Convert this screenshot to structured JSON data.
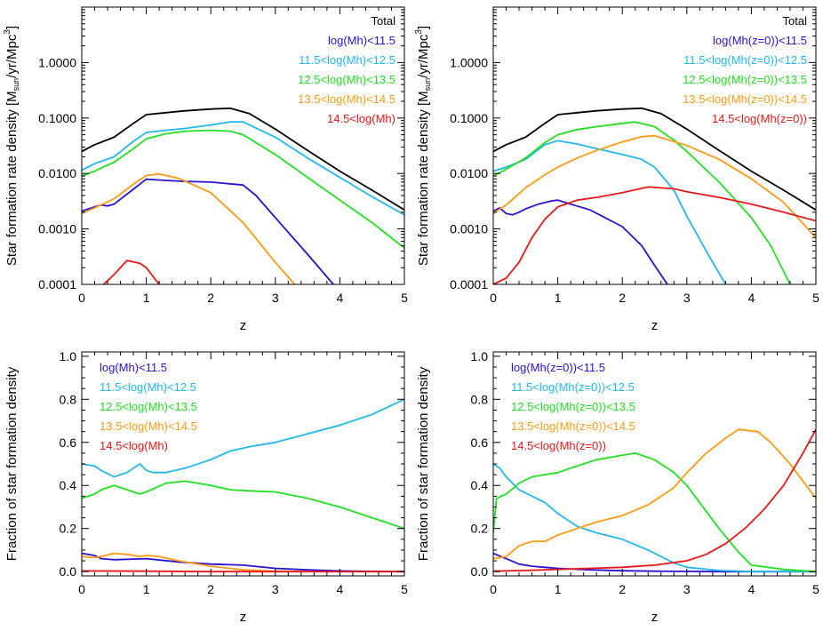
{
  "colors": {
    "total": "#000000",
    "bin1": "#2a12d0",
    "bin2": "#22b8ee",
    "bin3": "#22e022",
    "bin4": "#ff9a14",
    "bin5": "#e81818"
  },
  "chart_data": [
    {
      "id": "top-left",
      "type": "line",
      "yscale": "log",
      "xlabel": "z",
      "ylabel": "Star formation rate density [M",
      "ylabel_sub": "sun",
      "ylabel_tail": "/yr/Mpc",
      "ylabel_sup": "3",
      "ylabel_close": "]",
      "xlim": [
        0,
        5
      ],
      "ylim": [
        0.0001,
        10
      ],
      "xticks": [
        0,
        1,
        2,
        3,
        4,
        5
      ],
      "xtick_labels": [
        "0",
        "1",
        "2",
        "3",
        "4",
        "5"
      ],
      "yticks": [
        0.0001,
        0.001,
        0.01,
        0.1,
        1
      ],
      "ytick_labels": [
        "0.0001",
        "0.0010",
        "0.0100",
        "0.1000",
        "1.0000"
      ],
      "legend_align": "right",
      "series": [
        {
          "name": "Total",
          "color": "total",
          "x": [
            0,
            0.2,
            0.5,
            0.8,
            1.0,
            1.3,
            1.6,
            2.0,
            2.3,
            2.6,
            3.0,
            3.5,
            4.0,
            4.5,
            5.0
          ],
          "y": [
            0.025,
            0.033,
            0.045,
            0.08,
            0.115,
            0.125,
            0.135,
            0.145,
            0.15,
            0.12,
            0.063,
            0.026,
            0.011,
            0.005,
            0.0022
          ]
        },
        {
          "name": "log(Mh)<11.5",
          "color": "bin1",
          "x": [
            0,
            0.2,
            0.3,
            0.4,
            0.5,
            0.8,
            1.0,
            1.3,
            1.6,
            2.0,
            2.5,
            2.7,
            3.0,
            3.5,
            3.9
          ],
          "y": [
            0.0021,
            0.0025,
            0.0027,
            0.0026,
            0.0028,
            0.0052,
            0.0079,
            0.0075,
            0.0072,
            0.007,
            0.0062,
            0.004,
            0.0016,
            0.00035,
            0.0001
          ]
        },
        {
          "name": "11.5<log(Mh)<12.5",
          "color": "bin2",
          "x": [
            0,
            0.2,
            0.5,
            0.8,
            1.0,
            1.3,
            1.6,
            2.0,
            2.3,
            2.5,
            3.0,
            3.5,
            4.0,
            4.5,
            5.0
          ],
          "y": [
            0.0115,
            0.015,
            0.02,
            0.038,
            0.055,
            0.06,
            0.065,
            0.075,
            0.085,
            0.085,
            0.045,
            0.019,
            0.0085,
            0.0038,
            0.0018
          ]
        },
        {
          "name": "12.5<log(Mh)<13.5",
          "color": "bin3",
          "x": [
            0,
            0.2,
            0.5,
            0.8,
            1.0,
            1.3,
            1.6,
            2.0,
            2.3,
            2.5,
            3.0,
            3.5,
            4.0,
            4.5,
            5.0
          ],
          "y": [
            0.009,
            0.011,
            0.016,
            0.028,
            0.042,
            0.052,
            0.058,
            0.06,
            0.058,
            0.05,
            0.022,
            0.0085,
            0.0033,
            0.0013,
            0.00045
          ]
        },
        {
          "name": "13.5<log(Mh)<14.5",
          "color": "bin4",
          "x": [
            0,
            0.2,
            0.5,
            0.8,
            1.0,
            1.2,
            1.5,
            2.0,
            2.5,
            3.0,
            3.3
          ],
          "y": [
            0.0019,
            0.0024,
            0.0035,
            0.0064,
            0.0092,
            0.0098,
            0.0082,
            0.0045,
            0.0013,
            0.00025,
            0.0001
          ]
        },
        {
          "name": "14.5<log(Mh)",
          "color": "bin5",
          "x": [
            0,
            0.25,
            0.5,
            0.7,
            0.9,
            1.0,
            1.2
          ],
          "y": [
            9.5e-05,
            8e-05,
            0.00015,
            0.00027,
            0.00024,
            0.0002,
            0.0001
          ]
        }
      ]
    },
    {
      "id": "top-right",
      "type": "line",
      "yscale": "log",
      "xlabel": "z",
      "ylabel": "Star formation rate density [M",
      "ylabel_sub": "sun",
      "ylabel_tail": "/yr/Mpc",
      "ylabel_sup": "3",
      "ylabel_close": "]",
      "xlim": [
        0,
        5
      ],
      "ylim": [
        0.0001,
        10
      ],
      "xticks": [
        0,
        1,
        2,
        3,
        4,
        5
      ],
      "xtick_labels": [
        "0",
        "1",
        "2",
        "3",
        "4",
        "5"
      ],
      "yticks": [
        0.0001,
        0.001,
        0.01,
        0.1,
        1
      ],
      "ytick_labels": [
        "0.0001",
        "0.0010",
        "0.0100",
        "0.1000",
        "1.0000"
      ],
      "legend_align": "right",
      "series": [
        {
          "name": "Total",
          "color": "total",
          "x": [
            0,
            0.2,
            0.5,
            0.8,
            1.0,
            1.3,
            1.6,
            2.0,
            2.3,
            2.6,
            3.0,
            3.5,
            4.0,
            4.5,
            5.0
          ],
          "y": [
            0.025,
            0.033,
            0.045,
            0.08,
            0.115,
            0.125,
            0.135,
            0.145,
            0.15,
            0.12,
            0.063,
            0.026,
            0.011,
            0.005,
            0.0022
          ]
        },
        {
          "name": "log(Mh(z=0))<11.5",
          "color": "bin1",
          "x": [
            0,
            0.1,
            0.2,
            0.3,
            0.4,
            0.5,
            0.7,
            0.9,
            1.0,
            1.2,
            1.5,
            2.0,
            2.3,
            2.5,
            2.7
          ],
          "y": [
            0.0021,
            0.0024,
            0.0019,
            0.0018,
            0.002,
            0.0023,
            0.0028,
            0.0032,
            0.0033,
            0.0028,
            0.0022,
            0.0011,
            0.0005,
            0.00022,
            0.0001
          ]
        },
        {
          "name": "11.5<log(Mh(z=0))<12.5",
          "color": "bin2",
          "x": [
            0,
            0.2,
            0.5,
            0.8,
            1.0,
            1.3,
            1.6,
            2.0,
            2.3,
            2.5,
            2.8,
            3.0,
            3.3,
            3.6
          ],
          "y": [
            0.011,
            0.013,
            0.018,
            0.033,
            0.039,
            0.034,
            0.028,
            0.022,
            0.018,
            0.013,
            0.005,
            0.0017,
            0.0004,
            0.0001
          ]
        },
        {
          "name": "12.5<log(Mh(z=0))<13.5",
          "color": "bin3",
          "x": [
            0,
            0.2,
            0.5,
            0.8,
            1.0,
            1.3,
            1.6,
            2.0,
            2.2,
            2.5,
            2.8,
            3.0,
            3.5,
            4.0,
            4.3,
            4.6
          ],
          "y": [
            0.009,
            0.012,
            0.019,
            0.036,
            0.05,
            0.062,
            0.07,
            0.08,
            0.085,
            0.07,
            0.04,
            0.025,
            0.007,
            0.0016,
            0.0005,
            0.0001
          ]
        },
        {
          "name": "13.5<log(Mh(z=0))<14.5",
          "color": "bin4",
          "x": [
            0,
            0.2,
            0.5,
            0.8,
            1.0,
            1.3,
            1.6,
            2.0,
            2.3,
            2.5,
            3.0,
            3.5,
            4.0,
            4.5,
            5.0
          ],
          "y": [
            0.0019,
            0.0027,
            0.0055,
            0.0095,
            0.013,
            0.019,
            0.026,
            0.037,
            0.046,
            0.048,
            0.032,
            0.018,
            0.008,
            0.003,
            0.0007
          ]
        },
        {
          "name": "14.5<log(Mh(z=0))",
          "color": "bin5",
          "x": [
            0,
            0.2,
            0.4,
            0.6,
            0.8,
            1.0,
            1.3,
            1.6,
            2.0,
            2.4,
            2.8,
            3.0,
            3.5,
            4.0,
            4.5,
            5.0
          ],
          "y": [
            0.0001,
            0.00013,
            0.00025,
            0.0007,
            0.0015,
            0.0025,
            0.0033,
            0.0037,
            0.0045,
            0.0057,
            0.0053,
            0.0047,
            0.0037,
            0.0028,
            0.002,
            0.0014
          ]
        }
      ]
    },
    {
      "id": "bottom-left",
      "type": "line",
      "yscale": "linear",
      "xlabel": "z",
      "ylabel": "Fraction of star formation density",
      "xlim": [
        0,
        5
      ],
      "ylim": [
        -0.02,
        1.02
      ],
      "xticks": [
        0,
        1,
        2,
        3,
        4,
        5
      ],
      "xtick_labels": [
        "0",
        "1",
        "2",
        "3",
        "4",
        "5"
      ],
      "yticks": [
        0,
        0.2,
        0.4,
        0.6,
        0.8,
        1.0
      ],
      "ytick_labels": [
        "0.0",
        "0.2",
        "0.4",
        "0.6",
        "0.8",
        "1.0"
      ],
      "legend_align": "left",
      "series": [
        {
          "name": "log(Mh)<11.5",
          "color": "bin1",
          "x": [
            0,
            0.2,
            0.3,
            0.5,
            0.8,
            1.0,
            1.5,
            2.0,
            2.5,
            3.0,
            3.5,
            4.0,
            4.5,
            5.0
          ],
          "y": [
            0.085,
            0.075,
            0.06,
            0.055,
            0.058,
            0.06,
            0.045,
            0.035,
            0.03,
            0.015,
            0.008,
            0.003,
            0.001,
            0.0
          ]
        },
        {
          "name": "11.5<log(Mh)<12.5",
          "color": "bin2",
          "x": [
            0,
            0.2,
            0.3,
            0.5,
            0.7,
            0.9,
            1.0,
            1.1,
            1.3,
            1.6,
            2.0,
            2.3,
            2.6,
            3.0,
            3.5,
            4.0,
            4.5,
            5.0
          ],
          "y": [
            0.5,
            0.49,
            0.47,
            0.44,
            0.46,
            0.5,
            0.47,
            0.46,
            0.46,
            0.48,
            0.52,
            0.56,
            0.58,
            0.6,
            0.64,
            0.68,
            0.73,
            0.8
          ]
        },
        {
          "name": "12.5<log(Mh)<13.5",
          "color": "bin3",
          "x": [
            0,
            0.2,
            0.3,
            0.5,
            0.7,
            0.9,
            1.0,
            1.3,
            1.6,
            2.0,
            2.3,
            2.6,
            3.0,
            3.5,
            4.0,
            4.5,
            5.0
          ],
          "y": [
            0.34,
            0.36,
            0.38,
            0.4,
            0.38,
            0.36,
            0.37,
            0.41,
            0.42,
            0.4,
            0.38,
            0.375,
            0.37,
            0.34,
            0.3,
            0.25,
            0.2
          ]
        },
        {
          "name": "13.5<log(Mh)<14.5",
          "color": "bin4",
          "x": [
            0,
            0.2,
            0.3,
            0.5,
            0.7,
            0.9,
            1.0,
            1.2,
            1.5,
            2.0,
            2.5,
            3.0,
            3.5
          ],
          "y": [
            0.07,
            0.065,
            0.07,
            0.085,
            0.08,
            0.07,
            0.075,
            0.07,
            0.05,
            0.025,
            0.008,
            0.002,
            0.0
          ]
        },
        {
          "name": "14.5<log(Mh)",
          "color": "bin5",
          "x": [
            0,
            1.0,
            2.0,
            3.0,
            4.0,
            5.0
          ],
          "y": [
            0.003,
            0.002,
            0.0,
            0.0,
            0.0,
            0.0
          ]
        }
      ]
    },
    {
      "id": "bottom-right",
      "type": "line",
      "yscale": "linear",
      "xlabel": "z",
      "ylabel": "Fraction of star formation density",
      "xlim": [
        0,
        5
      ],
      "ylim": [
        -0.02,
        1.02
      ],
      "xticks": [
        0,
        1,
        2,
        3,
        4,
        5
      ],
      "xtick_labels": [
        "0",
        "1",
        "2",
        "3",
        "4",
        "5"
      ],
      "yticks": [
        0,
        0.2,
        0.4,
        0.6,
        0.8,
        1.0
      ],
      "ytick_labels": [
        "0.0",
        "0.2",
        "0.4",
        "0.6",
        "0.8",
        "1.0"
      ],
      "legend_align": "left",
      "series": [
        {
          "name": "log(Mh(z=0))<11.5",
          "color": "bin1",
          "x": [
            0,
            0.2,
            0.4,
            0.6,
            0.8,
            1.0,
            1.5,
            2.0,
            2.5,
            3.0,
            3.5,
            4.0,
            5.0
          ],
          "y": [
            0.085,
            0.06,
            0.035,
            0.025,
            0.02,
            0.015,
            0.008,
            0.004,
            0.002,
            0.001,
            0.0,
            0.0,
            0.0
          ]
        },
        {
          "name": "11.5<log(Mh(z=0))<12.5",
          "color": "bin2",
          "x": [
            0,
            0.1,
            0.2,
            0.4,
            0.6,
            0.8,
            1.0,
            1.3,
            1.6,
            2.0,
            2.4,
            2.8,
            3.0,
            3.5,
            4.0,
            5.0
          ],
          "y": [
            0.5,
            0.48,
            0.44,
            0.38,
            0.35,
            0.32,
            0.27,
            0.21,
            0.18,
            0.15,
            0.1,
            0.04,
            0.02,
            0.005,
            0.0,
            0.0
          ]
        },
        {
          "name": "12.5<log(Mh(z=0))<13.5",
          "color": "bin3",
          "x": [
            0,
            0.05,
            0.2,
            0.4,
            0.6,
            0.8,
            1.0,
            1.3,
            1.6,
            2.0,
            2.2,
            2.5,
            2.8,
            3.0,
            3.5,
            3.8,
            4.0,
            4.5,
            5.0
          ],
          "y": [
            0.18,
            0.34,
            0.36,
            0.41,
            0.44,
            0.45,
            0.46,
            0.49,
            0.52,
            0.54,
            0.55,
            0.52,
            0.46,
            0.4,
            0.2,
            0.09,
            0.03,
            0.01,
            0.0
          ]
        },
        {
          "name": "13.5<log(Mh(z=0))<14.5",
          "color": "bin4",
          "x": [
            0,
            0.2,
            0.4,
            0.6,
            0.8,
            1.0,
            1.3,
            1.6,
            2.0,
            2.4,
            2.8,
            3.0,
            3.3,
            3.6,
            3.8,
            4.1,
            4.3,
            4.6,
            4.8,
            5.0
          ],
          "y": [
            0.06,
            0.07,
            0.12,
            0.14,
            0.14,
            0.17,
            0.2,
            0.23,
            0.26,
            0.31,
            0.39,
            0.46,
            0.55,
            0.62,
            0.66,
            0.65,
            0.6,
            0.5,
            0.42,
            0.34
          ]
        },
        {
          "name": "14.5<log(Mh(z=0))",
          "color": "bin5",
          "x": [
            0,
            0.5,
            1.0,
            1.5,
            2.0,
            2.5,
            3.0,
            3.3,
            3.6,
            3.9,
            4.2,
            4.5,
            4.8,
            5.0
          ],
          "y": [
            0.002,
            0.005,
            0.01,
            0.015,
            0.02,
            0.03,
            0.05,
            0.08,
            0.13,
            0.2,
            0.29,
            0.4,
            0.55,
            0.66
          ]
        }
      ]
    }
  ]
}
